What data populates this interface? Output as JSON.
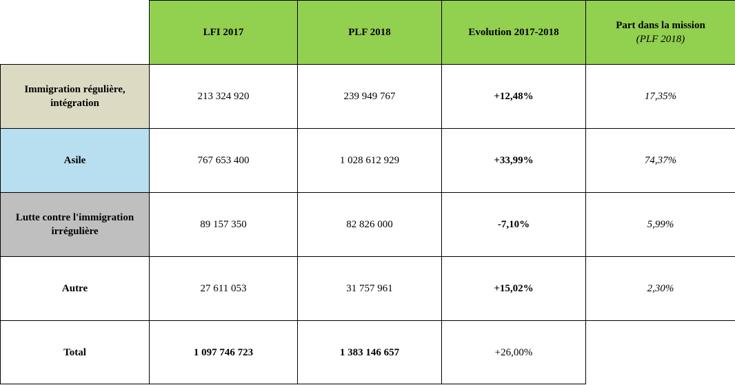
{
  "table": {
    "columns": [
      {
        "label": "LFI 2017"
      },
      {
        "label": "PLF 2018"
      },
      {
        "label": "Evolution 2017-2018"
      },
      {
        "label": "Part dans la mission",
        "sublabel": "(PLF 2018)"
      }
    ],
    "rows": [
      {
        "label": "Immigration régulière, intégration",
        "bg": "#dddac4",
        "lfi_2017": "213 324 920",
        "plf_2018": "239 949 767",
        "evolution": "+12,48%",
        "part": "17,35%"
      },
      {
        "label": "Asile",
        "bg": "#b8dff0",
        "lfi_2017": "767 653 400",
        "plf_2018": "1 028 612 929",
        "evolution": "+33,99%",
        "part": "74,37%"
      },
      {
        "label": "Lutte contre l'immigration irrégulière",
        "bg": "#bfbfbf",
        "lfi_2017": "89 157 350",
        "plf_2018": "82 826 000",
        "evolution": "-7,10%",
        "part": "5,99%"
      },
      {
        "label": "Autre",
        "bg": "#ffffff",
        "lfi_2017": "27 611 053",
        "plf_2018": "31 757 961",
        "evolution": "+15,02%",
        "part": "2,30%"
      }
    ],
    "total": {
      "label": "Total",
      "lfi_2017": "1 097 746 723",
      "plf_2018": "1 383 146 657",
      "evolution": "+26,00%"
    }
  },
  "colors": {
    "header_bg": "#92d050",
    "border": "#000000"
  }
}
